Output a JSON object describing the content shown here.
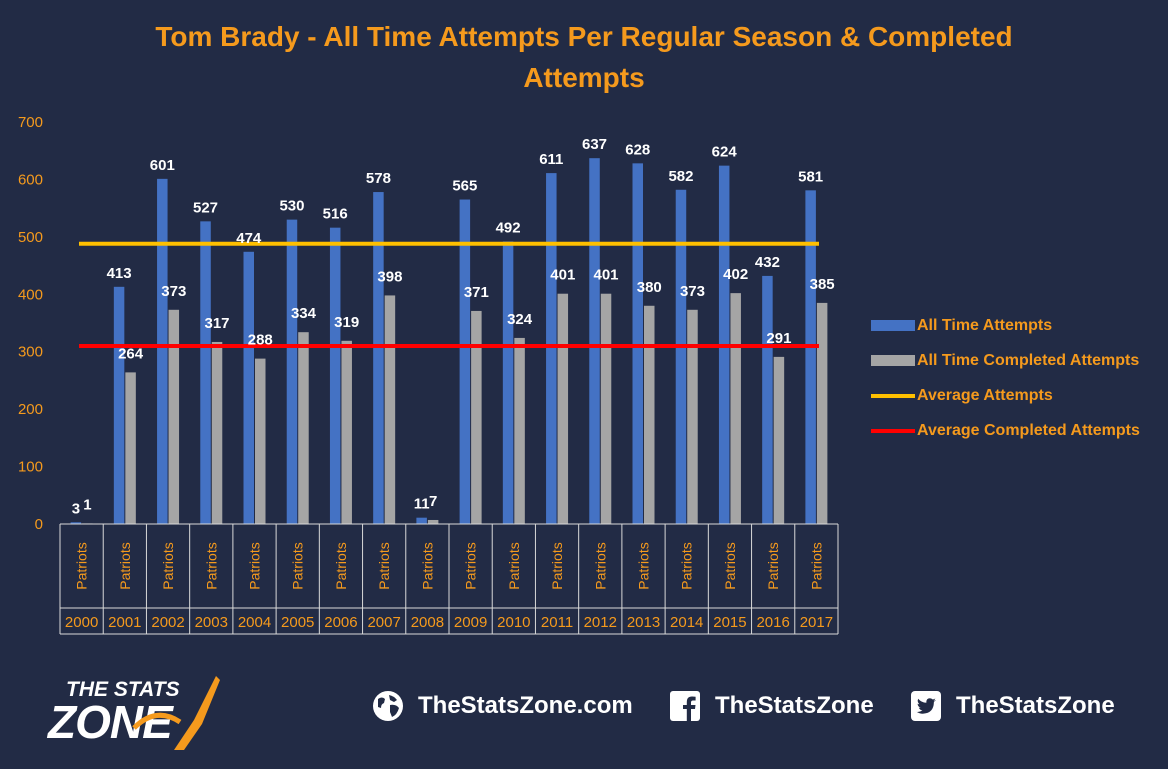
{
  "title_lines": [
    "Tom Brady - All Time Attempts Per Regular Season & Completed",
    "Attempts"
  ],
  "colors": {
    "background": "#222b45",
    "accent": "#f59a1d",
    "attempts": "#4472c4",
    "completed": "#a5a5a5",
    "avg_attempts": "#ffc000",
    "avg_completed": "#ff0000",
    "axis": "#d9d9d9"
  },
  "chart_data": {
    "type": "bar",
    "categories": [
      "2000",
      "2001",
      "2002",
      "2003",
      "2004",
      "2005",
      "2006",
      "2007",
      "2008",
      "2009",
      "2010",
      "2011",
      "2012",
      "2013",
      "2014",
      "2015",
      "2016",
      "2017"
    ],
    "category_team": "Patriots",
    "series": [
      {
        "name": "All Time Attempts",
        "values": [
          3,
          413,
          601,
          527,
          474,
          530,
          516,
          578,
          11,
          565,
          492,
          611,
          637,
          628,
          582,
          624,
          432,
          581
        ]
      },
      {
        "name": "All Time Completed Attempts",
        "values": [
          1,
          264,
          373,
          317,
          288,
          334,
          319,
          398,
          7,
          371,
          324,
          401,
          401,
          380,
          373,
          402,
          291,
          385
        ]
      }
    ],
    "point_labels": {
      "All Time Attempts": [
        "3",
        "413",
        "601",
        "527",
        "474",
        "530",
        "516",
        "578",
        "11",
        "565",
        "492",
        "611",
        "637",
        "628",
        "582",
        "624",
        "432",
        "581"
      ],
      "All Time Completed Attempts": [
        "1",
        "264",
        "373",
        "317",
        "288",
        "334",
        "319",
        "398",
        "7",
        "371",
        "324",
        "401",
        "401",
        "380",
        "373",
        "402",
        "291",
        "385"
      ]
    },
    "reference_lines": [
      {
        "name": "Average Attempts",
        "value": 488
      },
      {
        "name": "Average Completed Attempts",
        "value": 310
      }
    ],
    "yticks": [
      0,
      100,
      200,
      300,
      400,
      500,
      600,
      700
    ],
    "ylim": [
      0,
      700
    ],
    "grid": false,
    "legend_position": "right"
  },
  "legend": [
    {
      "label": "All Time Attempts",
      "kind": "bar",
      "color": "#4472c4"
    },
    {
      "label": "All Time Completed Attempts",
      "kind": "bar",
      "color": "#a5a5a5"
    },
    {
      "label": "Average Attempts",
      "kind": "line",
      "color": "#ffc000"
    },
    {
      "label": "Average Completed Attempts",
      "kind": "line",
      "color": "#ff0000"
    }
  ],
  "footer": {
    "logo_line1": "THE STATS",
    "logo_line2": "ZONE",
    "website": "TheStatsZone.com",
    "facebook": "TheStatsZone",
    "twitter": "TheStatsZone",
    "icons": [
      "globe-icon",
      "facebook-icon",
      "twitter-icon"
    ]
  }
}
